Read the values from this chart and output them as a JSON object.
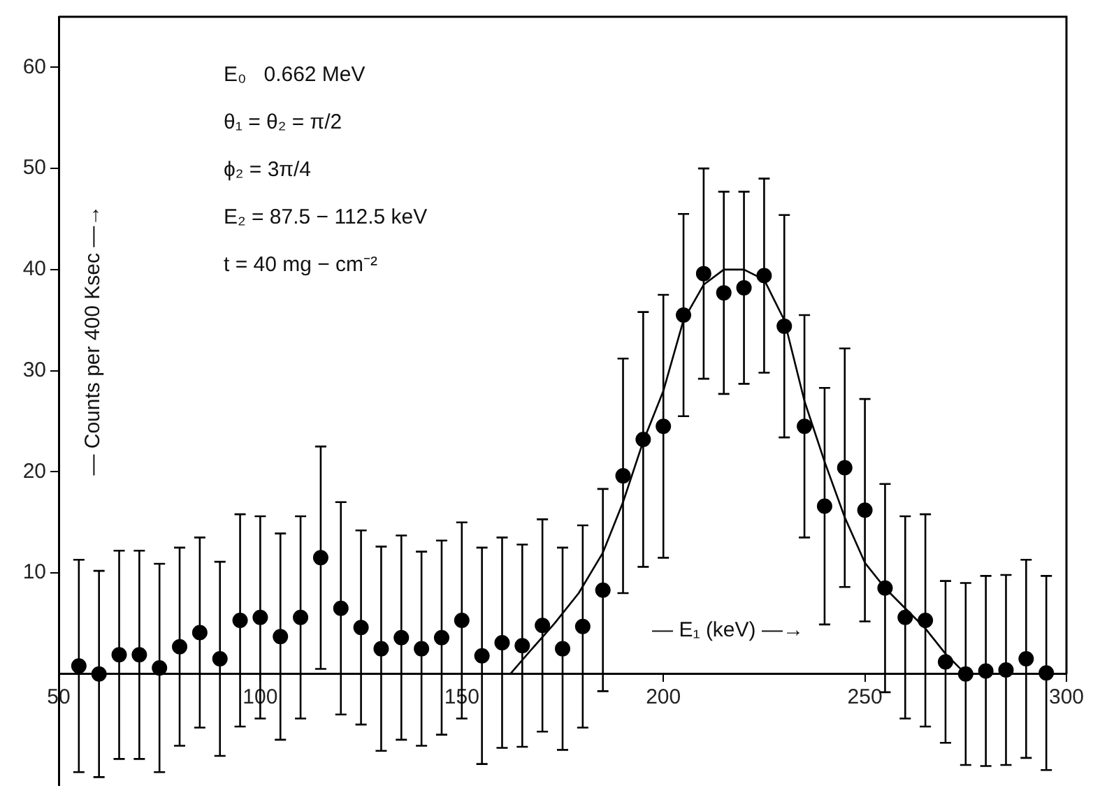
{
  "chart_data": {
    "type": "scatter",
    "xlabel": "— E₁ (keV) —→",
    "ylabel": "— Counts per 400 Ksec —→",
    "annotations": [
      "E₀   0.662 MeV",
      "θ₁ = θ₂ = π/2",
      "ϕ₂ = 3π/4",
      "E₂ = 87.5 − 112.5 keV",
      "t = 40 mg − cm⁻²"
    ],
    "xlim": [
      50,
      300
    ],
    "xticks": [
      50,
      100,
      150,
      200,
      250,
      300
    ],
    "ylim": [
      -11,
      65
    ],
    "yticks": [
      10,
      20,
      30,
      40,
      50,
      60
    ],
    "grid": false,
    "legend": false,
    "series": [
      {
        "type": "scatter",
        "color": "#000000",
        "marker": "circle",
        "x": [
          55,
          60,
          65,
          70,
          75,
          80,
          85,
          90,
          95,
          100,
          105,
          110,
          115,
          120,
          125,
          130,
          135,
          140,
          145,
          150,
          155,
          160,
          165,
          170,
          175,
          180,
          185,
          190,
          195,
          200,
          205,
          210,
          215,
          220,
          225,
          230,
          235,
          240,
          245,
          250,
          255,
          260,
          265,
          270,
          275,
          280,
          285,
          290,
          295
        ],
        "values": [
          0.8,
          0,
          1.9,
          1.9,
          0.6,
          2.7,
          4.1,
          1.5,
          5.3,
          5.6,
          3.7,
          5.6,
          11.5,
          6.5,
          4.6,
          2.5,
          3.6,
          2.5,
          3.6,
          5.3,
          1.8,
          3.1,
          2.8,
          4.8,
          2.5,
          4.7,
          8.3,
          19.6,
          23.2,
          24.5,
          35.5,
          39.6,
          37.7,
          38.2,
          39.4,
          34.4,
          24.5,
          16.6,
          20.4,
          16.2,
          8.5,
          5.6,
          5.3,
          1.2,
          0,
          0.3,
          0.4,
          1.5,
          0.1
        ],
        "errors": [
          10.5,
          10.2,
          10.3,
          10.3,
          10.3,
          9.8,
          9.4,
          9.6,
          10.5,
          10,
          10.2,
          10,
          11,
          10.5,
          9.6,
          10.1,
          10.1,
          9.6,
          9.6,
          9.7,
          10.7,
          10.4,
          10,
          10.5,
          10,
          10,
          10,
          11.6,
          12.6,
          13,
          10,
          10.4,
          10,
          9.5,
          9.6,
          11,
          11,
          11.7,
          11.8,
          11,
          10.3,
          10,
          10.5,
          8,
          9,
          9.4,
          9.4,
          9.8,
          9.6
        ]
      },
      {
        "type": "line",
        "color": "#000000",
        "marker": "none",
        "line_style": "solid",
        "x": [
          162,
          167,
          173,
          179,
          185,
          190,
          195,
          200,
          205,
          210,
          215,
          220,
          225,
          230,
          235,
          240,
          245,
          250,
          255,
          260,
          265,
          270,
          275
        ],
        "values": [
          0,
          2.3,
          5,
          8,
          12,
          17,
          23,
          28,
          35,
          38.5,
          40,
          40,
          39,
          35,
          27,
          21,
          15.5,
          11,
          8.5,
          6.5,
          4.5,
          2,
          0
        ]
      }
    ]
  }
}
